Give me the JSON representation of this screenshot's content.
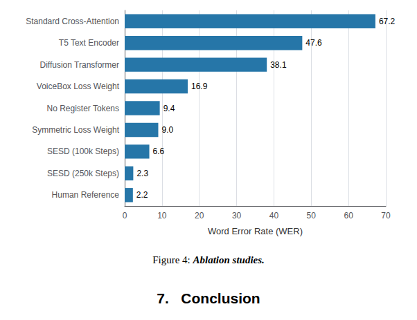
{
  "chart_data": {
    "type": "bar",
    "orientation": "horizontal",
    "categories": [
      "Human Reference",
      "SESD (250k Steps)",
      "SESD (100k Steps)",
      "Symmetric Loss Weight",
      "No Register Tokens",
      "VoiceBox Loss Weight",
      "Diffusion Transformer",
      "T5 Text Encoder",
      "Standard Cross-Attention"
    ],
    "values": [
      2.2,
      2.3,
      6.6,
      9.0,
      9.4,
      16.9,
      38.1,
      47.6,
      67.2
    ],
    "value_labels": [
      "2.2",
      "2.3",
      "6.6",
      "9.0",
      "9.4",
      "16.9",
      "38.1",
      "47.6",
      "67.2"
    ],
    "data_labels": true,
    "color": "#2676a8",
    "xlabel": "Word Error Rate (WER)",
    "xlim": [
      0,
      70
    ],
    "xticks": [
      0,
      10,
      20,
      30,
      40,
      50,
      60,
      70
    ],
    "grid": true,
    "annotations": [
      "Figure 4: ",
      "Ablation studies.",
      "7.   Conclusion"
    ]
  }
}
